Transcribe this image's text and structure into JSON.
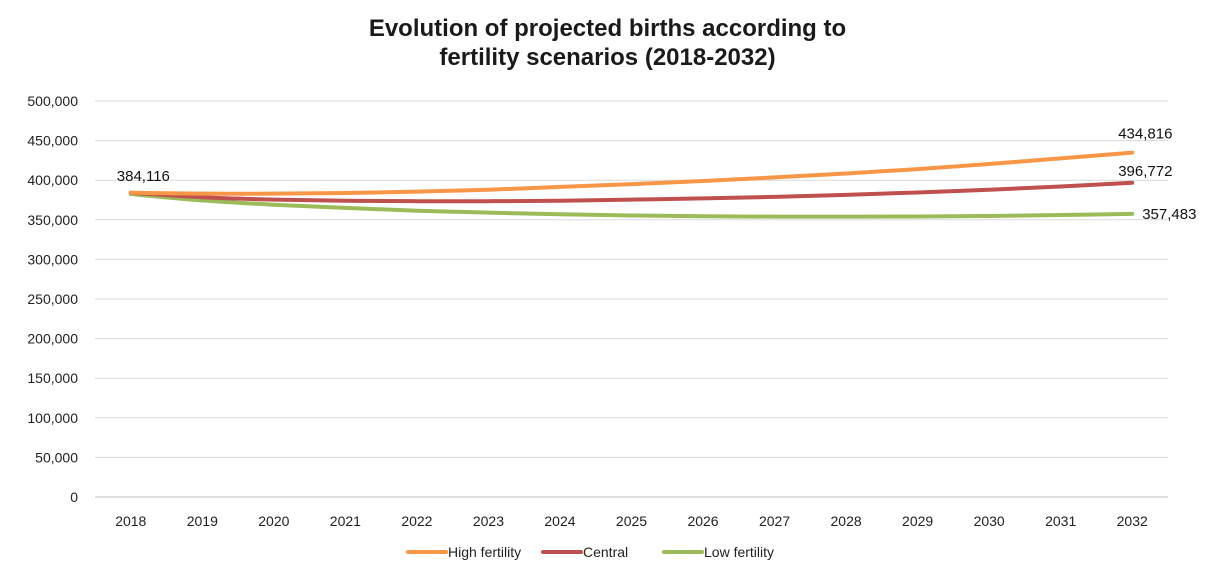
{
  "chart_data": {
    "type": "line",
    "title_line1": "Evolution of projected births according to",
    "title_line2": "fertility scenarios (2018-2032)",
    "xlabel": "",
    "ylabel": "",
    "categories": [
      "2018",
      "2019",
      "2020",
      "2021",
      "2022",
      "2023",
      "2024",
      "2025",
      "2026",
      "2027",
      "2028",
      "2029",
      "2030",
      "2031",
      "2032"
    ],
    "ylim": [
      0,
      500000
    ],
    "y_ticks": [
      0,
      50000,
      100000,
      150000,
      200000,
      250000,
      300000,
      350000,
      400000,
      450000,
      500000
    ],
    "y_tick_labels": [
      "0",
      "50,000",
      "100,000",
      "150,000",
      "200,000",
      "250,000",
      "300,000",
      "350,000",
      "400,000",
      "450,000",
      "500,000"
    ],
    "grid": true,
    "legend_position": "bottom",
    "series": [
      {
        "name": "High fertility",
        "color": "#f79646",
        "values": [
          384116,
          383000,
          383000,
          383800,
          385500,
          388000,
          391500,
          395000,
          399000,
          403500,
          408500,
          414000,
          420500,
          427500,
          434816
        ]
      },
      {
        "name": "Central",
        "color": "#c0504d",
        "values": [
          384116,
          378500,
          375500,
          374000,
          373500,
          373500,
          374000,
          375500,
          377000,
          379000,
          381500,
          384500,
          388000,
          392000,
          396772
        ]
      },
      {
        "name": "Low fertility",
        "color": "#9bbb59",
        "values": [
          382500,
          374500,
          369000,
          365000,
          361500,
          359000,
          357000,
          355500,
          354500,
          354000,
          354000,
          354200,
          354800,
          356000,
          357483
        ]
      }
    ],
    "data_labels": [
      {
        "series": 0,
        "index": 0,
        "text": "384,116"
      },
      {
        "series": 0,
        "index": 14,
        "text": "434,816"
      },
      {
        "series": 1,
        "index": 14,
        "text": "396,772"
      },
      {
        "series": 2,
        "index": 14,
        "text": "357,483"
      }
    ]
  }
}
